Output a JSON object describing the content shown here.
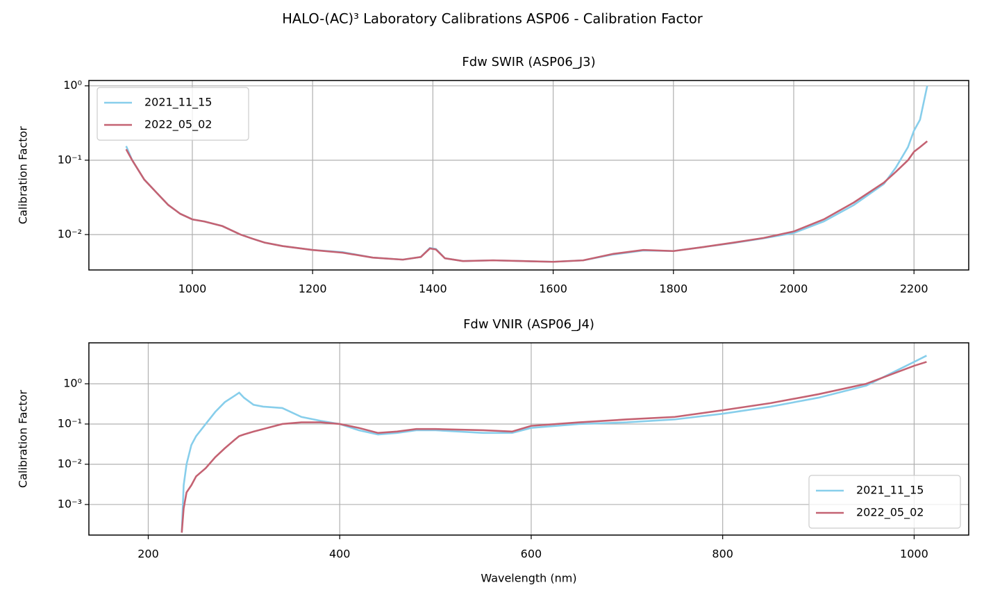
{
  "title": "HALO-(AC)³ Laboratory Calibrations ASP06 - Calibration Factor",
  "chart_data": [
    {
      "type": "line",
      "title": "Fdw SWIR (ASP06_J3)",
      "ylabel": "Calibration Factor",
      "log_y": true,
      "grid": true,
      "legend": "upper left",
      "xlim": [
        828,
        2291
      ],
      "xticks": [
        1000,
        1200,
        1400,
        1600,
        1800,
        2000,
        2200
      ],
      "ylim": [
        0.00334,
        1.18
      ],
      "yticks": [
        {
          "value": 0.01,
          "label": "10⁻²"
        },
        {
          "value": 0.1,
          "label": "10⁻¹"
        },
        {
          "value": 1,
          "label": "10⁰"
        }
      ],
      "x": [
        890,
        900,
        920,
        940,
        960,
        980,
        1000,
        1020,
        1050,
        1080,
        1100,
        1120,
        1150,
        1200,
        1250,
        1300,
        1350,
        1380,
        1395,
        1405,
        1420,
        1450,
        1500,
        1550,
        1600,
        1650,
        1700,
        1750,
        1800,
        1850,
        1900,
        1950,
        2000,
        2050,
        2100,
        2150,
        2170,
        2190,
        2200,
        2210,
        2222
      ],
      "series": [
        {
          "name": "2021_11_15",
          "color": "#87ceeb",
          "values": [
            0.155,
            0.1,
            0.055,
            0.037,
            0.025,
            0.019,
            0.016,
            0.015,
            0.013,
            0.01,
            0.0088,
            0.0078,
            0.007,
            0.0062,
            0.0058,
            0.0049,
            0.0046,
            0.005,
            0.0066,
            0.0064,
            0.0048,
            0.0044,
            0.0045,
            0.0044,
            0.0043,
            0.0045,
            0.0054,
            0.0061,
            0.006,
            0.0068,
            0.0077,
            0.0089,
            0.0105,
            0.015,
            0.025,
            0.048,
            0.08,
            0.15,
            0.25,
            0.35,
            1.0
          ]
        },
        {
          "name": "2022_05_02",
          "color": "#c46272",
          "values": [
            0.14,
            0.1,
            0.055,
            0.037,
            0.025,
            0.019,
            0.016,
            0.015,
            0.013,
            0.01,
            0.0088,
            0.0078,
            0.007,
            0.0062,
            0.0057,
            0.0049,
            0.0046,
            0.005,
            0.0065,
            0.0063,
            0.0048,
            0.0044,
            0.0045,
            0.0044,
            0.0043,
            0.0045,
            0.0055,
            0.0062,
            0.006,
            0.0068,
            0.0078,
            0.009,
            0.011,
            0.016,
            0.027,
            0.05,
            0.07,
            0.1,
            0.13,
            0.15,
            0.18
          ]
        }
      ]
    },
    {
      "type": "line",
      "title": "Fdw VNIR (ASP06_J4)",
      "ylabel": "Calibration Factor",
      "xlabel": "Wavelength (nm)",
      "log_y": true,
      "grid": true,
      "legend": "lower right",
      "xlim": [
        138,
        1057
      ],
      "xticks": [
        200,
        400,
        600,
        800,
        1000
      ],
      "ylim": [
        0.000174,
        10.4
      ],
      "yticks": [
        {
          "value": 0.001,
          "label": "10⁻³"
        },
        {
          "value": 0.01,
          "label": "10⁻²"
        },
        {
          "value": 0.1,
          "label": "10⁻¹"
        },
        {
          "value": 1,
          "label": "10⁰"
        }
      ],
      "x": [
        235,
        237,
        240,
        245,
        250,
        260,
        270,
        280,
        290,
        295,
        300,
        310,
        320,
        340,
        360,
        380,
        400,
        420,
        440,
        460,
        480,
        500,
        550,
        580,
        600,
        650,
        700,
        750,
        800,
        850,
        900,
        950,
        1000,
        1013
      ],
      "series": [
        {
          "name": "2021_11_15",
          "color": "#87ceeb",
          "values": [
            0.0002,
            0.003,
            0.01,
            0.03,
            0.05,
            0.1,
            0.2,
            0.35,
            0.5,
            0.6,
            0.45,
            0.3,
            0.27,
            0.25,
            0.15,
            0.12,
            0.1,
            0.07,
            0.055,
            0.06,
            0.07,
            0.07,
            0.06,
            0.06,
            0.08,
            0.1,
            0.11,
            0.13,
            0.18,
            0.27,
            0.45,
            0.9,
            3.5,
            5.0
          ]
        },
        {
          "name": "2022_05_02",
          "color": "#c46272",
          "values": [
            0.0002,
            0.0008,
            0.002,
            0.003,
            0.005,
            0.008,
            0.015,
            0.025,
            0.04,
            0.05,
            0.055,
            0.065,
            0.075,
            0.1,
            0.11,
            0.11,
            0.1,
            0.08,
            0.06,
            0.065,
            0.075,
            0.075,
            0.07,
            0.065,
            0.09,
            0.11,
            0.13,
            0.15,
            0.22,
            0.33,
            0.55,
            1.0,
            2.8,
            3.5
          ]
        }
      ]
    }
  ]
}
